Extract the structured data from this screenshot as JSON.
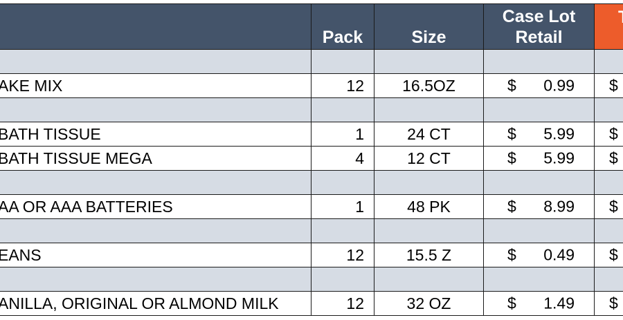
{
  "header": {
    "pack": "Pack",
    "size": "Size",
    "case_lot_line1": "Case Lot",
    "case_lot_line2": "Retail",
    "next_col_partial": "T"
  },
  "rows": [
    {
      "type": "band"
    },
    {
      "type": "item",
      "description": "AKE MIX",
      "pack": "12",
      "size": "16.5OZ",
      "currency": "$",
      "case_lot_retail": "0.99",
      "next_currency": "$"
    },
    {
      "type": "band"
    },
    {
      "type": "item",
      "description": " BATH TISSUE",
      "pack": "1",
      "size": "24 CT",
      "currency": "$",
      "case_lot_retail": "5.99",
      "next_currency": "$"
    },
    {
      "type": "item",
      "description": " BATH TISSUE MEGA",
      "pack": "4",
      "size": "12 CT",
      "currency": "$",
      "case_lot_retail": "5.99",
      "next_currency": "$"
    },
    {
      "type": "band"
    },
    {
      "type": "item",
      "description": "AA OR AAA BATTERIES",
      "pack": "1",
      "size": "48 PK",
      "currency": "$",
      "case_lot_retail": "8.99",
      "next_currency": "$"
    },
    {
      "type": "band"
    },
    {
      "type": "item",
      "description": "EANS",
      "pack": "12",
      "size": "15.5 Z",
      "currency": "$",
      "case_lot_retail": "0.49",
      "next_currency": "$"
    },
    {
      "type": "band"
    },
    {
      "type": "item",
      "description": "ANILLA, ORIGINAL OR ALMOND MILK",
      "pack": "12",
      "size": "32 OZ",
      "currency": "$",
      "case_lot_retail": "1.49",
      "next_currency": "$"
    }
  ],
  "colors": {
    "header_bg": "#44546a",
    "header_accent": "#ed5c2b",
    "band_bg": "#d6dce4",
    "row_bg": "#ffffff"
  }
}
